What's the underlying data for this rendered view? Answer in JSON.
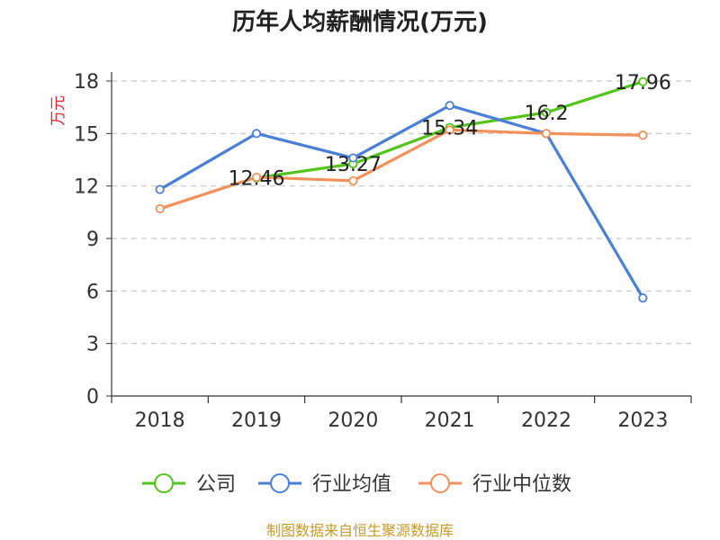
{
  "chart_data": {
    "type": "line",
    "title": "历年人均薪酬情况(万元)",
    "ylabel": "万元",
    "xlabel": "",
    "categories": [
      "2018",
      "2019",
      "2020",
      "2021",
      "2022",
      "2023"
    ],
    "ylim": [
      0,
      18
    ],
    "yticks": [
      0,
      3,
      6,
      9,
      12,
      15,
      18
    ],
    "grid": true,
    "legend_position": "bottom",
    "series": [
      {
        "name": "公司",
        "color": "#52c41a",
        "values": [
          null,
          12.46,
          13.27,
          15.34,
          16.2,
          17.96
        ],
        "labels": [
          "",
          "12.46",
          "13.27",
          "15.34",
          "16.2",
          "17.96"
        ]
      },
      {
        "name": "行业均值",
        "color": "#4a7fd9",
        "values": [
          11.8,
          15.0,
          13.6,
          16.6,
          15.0,
          5.6
        ]
      },
      {
        "name": "行业中位数",
        "color": "#f4915a",
        "values": [
          10.7,
          12.5,
          12.3,
          15.2,
          15.0,
          14.9
        ]
      }
    ],
    "source": "制图数据来自恒生聚源数据库"
  }
}
